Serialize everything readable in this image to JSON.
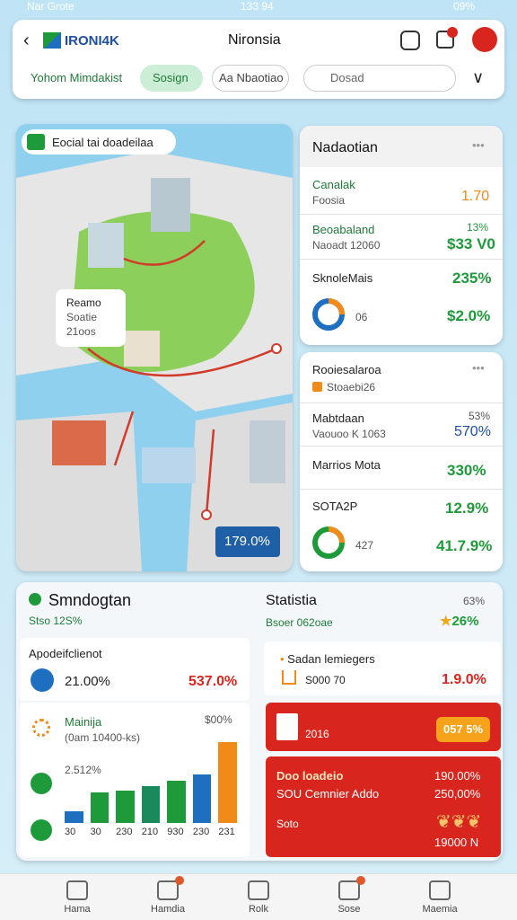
{
  "status": {
    "carrier": "Nar Grote",
    "time": "133 94",
    "battery": "09%"
  },
  "header": {
    "logo": "IRONI4K",
    "title": "Nironsia",
    "tabs": [
      "Yohom Mimdakist",
      "Sosign",
      "Aa Nbaotiao"
    ],
    "search": "Dosad"
  },
  "map": {
    "title": "Eocial tai doadeilaa",
    "popup": [
      "Reamo",
      "Soatie",
      "21oos"
    ],
    "badge": "179.0%"
  },
  "panel1": {
    "title": "Nadaotian",
    "rows": [
      {
        "name": "Canalak",
        "sub": "Foosia",
        "value": "1.70"
      },
      {
        "name": "Beoabaland",
        "sub": "Naoadt 12060",
        "note": "13%",
        "value": "$33 V0"
      },
      {
        "name": "SknoleMais",
        "value": "235%"
      },
      {
        "name": "06",
        "value": "$2.0%"
      }
    ]
  },
  "panel2": {
    "title": "Rooiesalaroa",
    "sub": "Stoaebi26",
    "rows": [
      {
        "name": "Mabtdaan",
        "sub": "Vaouoo K 1063",
        "note": "53%",
        "value": "570%"
      },
      {
        "name": "Marrios Mota",
        "value": "330%"
      },
      {
        "name": "SOTA2P",
        "value": "12.9%"
      },
      {
        "name": "427",
        "value": "41.7.9%"
      }
    ]
  },
  "summary": {
    "title": "Smndogtan",
    "sub": "Stso 12S%",
    "section": "Apodeifclienot",
    "stat": "21.00%",
    "stat_value": "537.0%",
    "chart": {
      "title": "Mainija",
      "sub": "(0am 10400-ks)",
      "max_label": "$00%",
      "mid_label": "2.512%",
      "categories": [
        "30",
        "30",
        "230",
        "210",
        "930",
        "230",
        "231"
      ],
      "values": [
        14,
        38,
        40,
        46,
        52,
        60,
        100
      ],
      "colors": [
        "#1e6fc0",
        "#1f9a3a",
        "#1f9a3a",
        "#1a8a5a",
        "#1f9a3a",
        "#1e6fc0",
        "#f08a18"
      ]
    }
  },
  "stats": {
    "title": "Statistia",
    "note": "63%",
    "sub": "Bsoer 062oae",
    "star": "26%",
    "item": {
      "name": "Sadan lemiegers",
      "sub": "S000 70",
      "value": "1.9.0%"
    },
    "alert1": {
      "sub": "2016",
      "value": "057 5%"
    },
    "alert2": {
      "title": "Doo loadeio",
      "title_value": "190.00%",
      "line": "SOU Cemnier Addo",
      "line_value": "250,00%",
      "foot": "Soto",
      "foot_value": "19000 N"
    }
  },
  "nav": [
    "Hama",
    "Hamdia",
    "Rolk",
    "Sose",
    "Maemia"
  ]
}
